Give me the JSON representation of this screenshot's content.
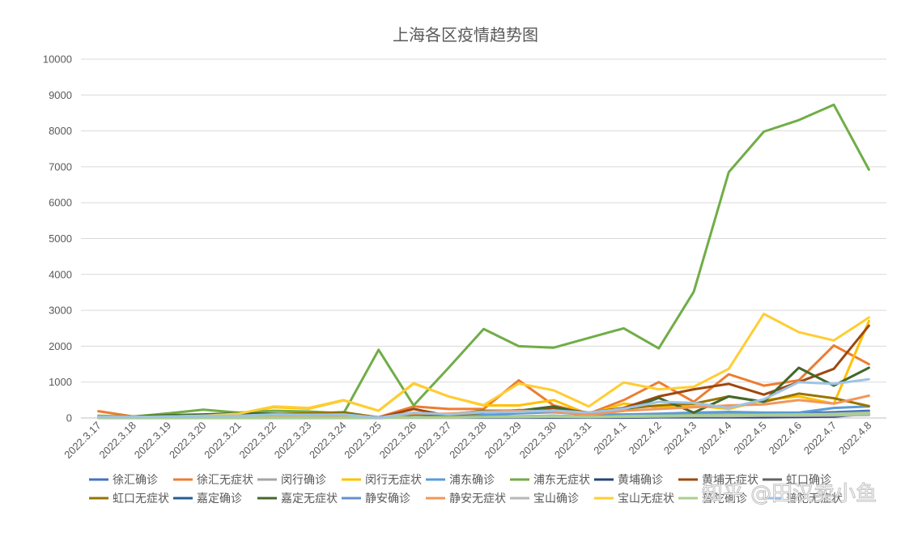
{
  "chart_data": {
    "type": "line",
    "title": "上海各区疫情趋势图",
    "xlabel": "",
    "ylabel": "",
    "ylim": [
      0,
      10000
    ],
    "yticks": [
      0,
      1000,
      2000,
      3000,
      4000,
      5000,
      6000,
      7000,
      8000,
      9000,
      10000
    ],
    "grid": true,
    "legend_position": "bottom",
    "x": [
      "2022.3.17",
      "2022.3.18",
      "2022.3.19",
      "2022.3.20",
      "2022.3.21",
      "2022.3.22",
      "2022.3.23",
      "2022.3.24",
      "2022.3.25",
      "2022.3.26",
      "2022.3.27",
      "2022.3.28",
      "2022.3.29",
      "2022.3.30",
      "2022.3.31",
      "2022.4.1",
      "2022.4.2",
      "2022.4.3",
      "2022.4.4",
      "2022.4.5",
      "2022.4.6",
      "2022.4.7",
      "2022.4.8"
    ],
    "series": [
      {
        "name": "徐汇确诊",
        "color": "#4472C4",
        "values": [
          30,
          20,
          20,
          30,
          20,
          20,
          20,
          30,
          10,
          20,
          20,
          30,
          40,
          60,
          30,
          60,
          80,
          100,
          100,
          120,
          140,
          160,
          200
        ]
      },
      {
        "name": "徐汇无症状",
        "color": "#ED7D31",
        "values": [
          190,
          40,
          30,
          60,
          40,
          60,
          100,
          150,
          20,
          320,
          250,
          250,
          1050,
          350,
          120,
          500,
          1000,
          450,
          1220,
          900,
          1050,
          2020,
          1500
        ]
      },
      {
        "name": "闵行确诊",
        "color": "#A5A5A5",
        "values": [
          20,
          10,
          10,
          20,
          10,
          10,
          10,
          20,
          10,
          20,
          30,
          40,
          50,
          60,
          40,
          60,
          80,
          90,
          100,
          110,
          100,
          120,
          150
        ]
      },
      {
        "name": "闵行无症状",
        "color": "#FFC000",
        "values": [
          30,
          30,
          40,
          80,
          110,
          300,
          260,
          490,
          200,
          960,
          600,
          350,
          350,
          500,
          100,
          400,
          300,
          350,
          250,
          500,
          600,
          400,
          2700
        ]
      },
      {
        "name": "浦东确诊",
        "color": "#5B9BD5",
        "values": [
          20,
          20,
          30,
          40,
          30,
          30,
          40,
          40,
          20,
          30,
          40,
          80,
          130,
          160,
          90,
          100,
          120,
          150,
          170,
          150,
          150,
          280,
          320
        ]
      },
      {
        "name": "浦东无症状",
        "color": "#70AD47",
        "values": [
          60,
          40,
          130,
          230,
          150,
          200,
          180,
          130,
          1900,
          350,
          1400,
          2480,
          2000,
          1960,
          2230,
          2500,
          1940,
          3520,
          6850,
          7980,
          8300,
          8730,
          6920
        ]
      },
      {
        "name": "黄埔确诊",
        "color": "#264478",
        "values": [
          10,
          10,
          10,
          10,
          10,
          10,
          10,
          10,
          10,
          10,
          10,
          10,
          10,
          10,
          10,
          10,
          20,
          20,
          20,
          20,
          30,
          40,
          110
        ]
      },
      {
        "name": "黄埔无症状",
        "color": "#9E480E",
        "values": [
          20,
          20,
          30,
          40,
          60,
          50,
          80,
          90,
          10,
          250,
          60,
          180,
          200,
          280,
          150,
          280,
          600,
          800,
          950,
          650,
          1000,
          1370,
          2570
        ]
      },
      {
        "name": "虹口确诊",
        "color": "#636363",
        "values": [
          10,
          10,
          10,
          10,
          10,
          10,
          10,
          10,
          10,
          20,
          20,
          30,
          30,
          40,
          20,
          40,
          60,
          60,
          60,
          70,
          80,
          100,
          120
        ]
      },
      {
        "name": "虹口无症状",
        "color": "#997300",
        "values": [
          20,
          20,
          30,
          50,
          80,
          110,
          130,
          160,
          10,
          110,
          60,
          150,
          220,
          200,
          60,
          260,
          350,
          400,
          600,
          450,
          680,
          550,
          330
        ]
      },
      {
        "name": "嘉定确诊",
        "color": "#255E91",
        "values": [
          10,
          10,
          10,
          10,
          10,
          10,
          10,
          10,
          10,
          20,
          20,
          30,
          30,
          40,
          20,
          40,
          60,
          60,
          60,
          70,
          80,
          90,
          100
        ]
      },
      {
        "name": "嘉定无症状",
        "color": "#43682B",
        "values": [
          30,
          40,
          80,
          100,
          130,
          120,
          90,
          110,
          10,
          100,
          100,
          200,
          200,
          320,
          100,
          200,
          560,
          150,
          600,
          450,
          1400,
          900,
          1400
        ]
      },
      {
        "name": "静安确诊",
        "color": "#698ED0",
        "values": [
          10,
          10,
          10,
          10,
          10,
          10,
          10,
          20,
          10,
          20,
          20,
          30,
          40,
          50,
          30,
          50,
          60,
          70,
          80,
          90,
          100,
          110,
          120
        ]
      },
      {
        "name": "静安无症状",
        "color": "#F1975A",
        "values": [
          40,
          30,
          40,
          40,
          50,
          60,
          70,
          80,
          10,
          120,
          120,
          180,
          200,
          180,
          80,
          200,
          250,
          300,
          350,
          380,
          500,
          400,
          620
        ]
      },
      {
        "name": "宝山确诊",
        "color": "#B7B7B7",
        "values": [
          10,
          10,
          10,
          10,
          10,
          10,
          10,
          10,
          10,
          10,
          10,
          20,
          20,
          30,
          20,
          30,
          40,
          50,
          50,
          60,
          60,
          70,
          80
        ]
      },
      {
        "name": "宝山无症状",
        "color": "#FFCD33",
        "values": [
          20,
          30,
          40,
          60,
          120,
          320,
          280,
          500,
          200,
          970,
          600,
          360,
          960,
          770,
          320,
          990,
          800,
          870,
          1370,
          2900,
          2390,
          2160,
          2800
        ]
      },
      {
        "name": "普陀确诊",
        "color": "#A9D18E",
        "values": [
          10,
          10,
          10,
          10,
          10,
          10,
          10,
          10,
          10,
          20,
          20,
          30,
          40,
          50,
          30,
          50,
          60,
          70,
          80,
          90,
          100,
          110,
          130
        ]
      },
      {
        "name": "普陀无症状",
        "color": "#9DC3E6",
        "values": [
          30,
          30,
          40,
          60,
          60,
          100,
          90,
          100,
          10,
          150,
          100,
          160,
          170,
          210,
          150,
          260,
          450,
          420,
          280,
          520,
          1000,
          950,
          1080
        ]
      }
    ]
  },
  "watermark": {
    "text": "知乎 @田汉卖小鱼"
  }
}
